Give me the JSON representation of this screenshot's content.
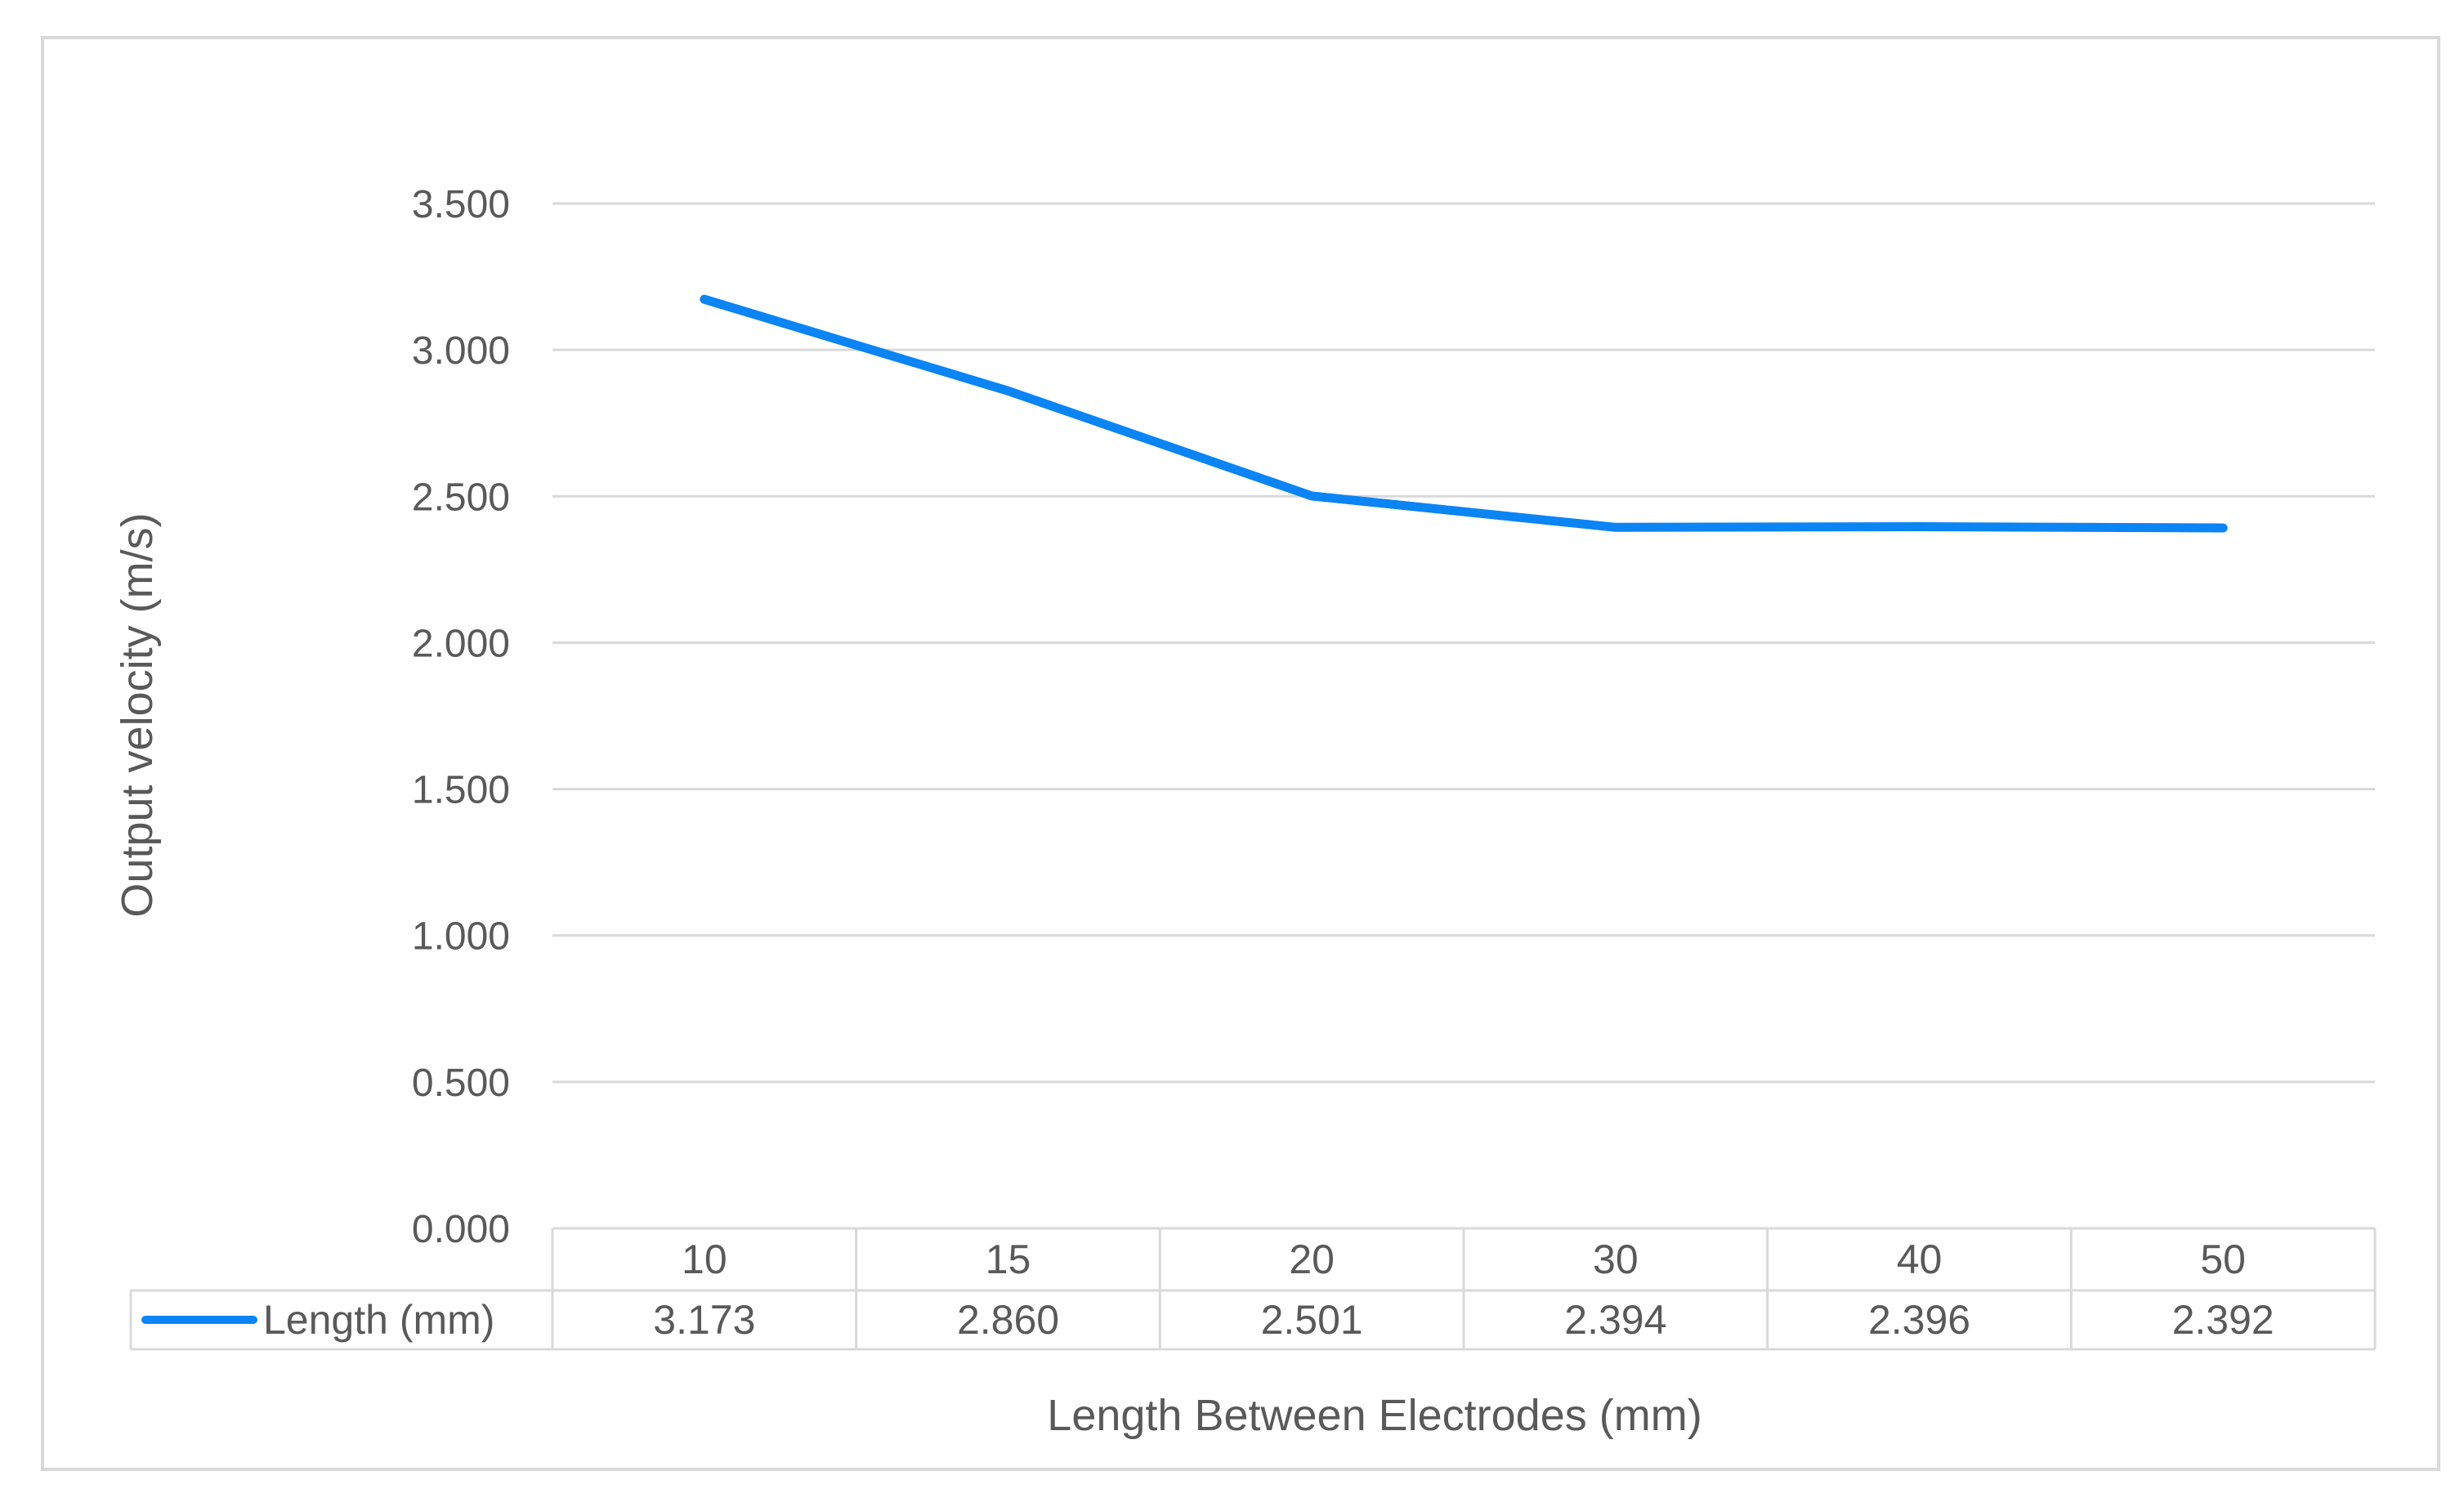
{
  "chart_data": {
    "type": "line",
    "title": "",
    "xlabel": "Length Between Electrodes (mm)",
    "ylabel": "Output velocity (m/s)",
    "categories": [
      "10",
      "15",
      "20",
      "30",
      "40",
      "50"
    ],
    "series": [
      {
        "name": "Length (mm)",
        "color": "#0b84f5",
        "values": [
          3.173,
          2.86,
          2.501,
          2.394,
          2.396,
          2.392
        ],
        "value_labels": [
          "3.173",
          "2.860",
          "2.501",
          "2.394",
          "2.396",
          "2.392"
        ]
      }
    ],
    "ylim": [
      0,
      3.5
    ],
    "yticks": [
      0,
      0.5,
      1,
      1.5,
      2,
      2.5,
      3,
      3.5
    ],
    "ytick_labels": [
      "0.000",
      "0.500",
      "1.000",
      "1.500",
      "2.000",
      "2.500",
      "3.000",
      "3.500"
    ],
    "grid": true,
    "legend": "data-table-bottom",
    "data_table": true
  }
}
